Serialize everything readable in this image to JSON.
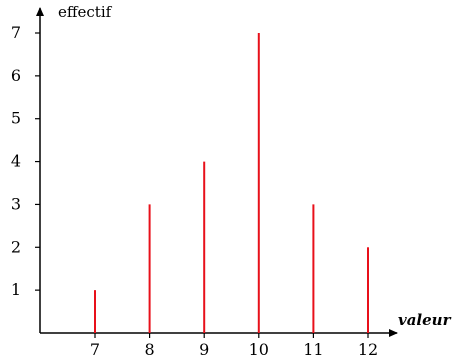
{
  "chart_data": {
    "type": "bar",
    "title": "",
    "xlabel": "valeur",
    "ylabel": "effectif",
    "categories": [
      "7",
      "8",
      "9",
      "10",
      "11",
      "12"
    ],
    "x": [
      7,
      8,
      9,
      10,
      11,
      12
    ],
    "values": [
      1,
      3,
      4,
      7,
      3,
      2
    ],
    "xlim": [
      6,
      13
    ],
    "ylim": [
      0,
      7.5
    ],
    "yticks": [
      1,
      2,
      3,
      4,
      5,
      6,
      7
    ],
    "grid": false,
    "bar_style": "thin vertical lines",
    "bar_color": "#e8101a",
    "axis_color": "#000000"
  }
}
